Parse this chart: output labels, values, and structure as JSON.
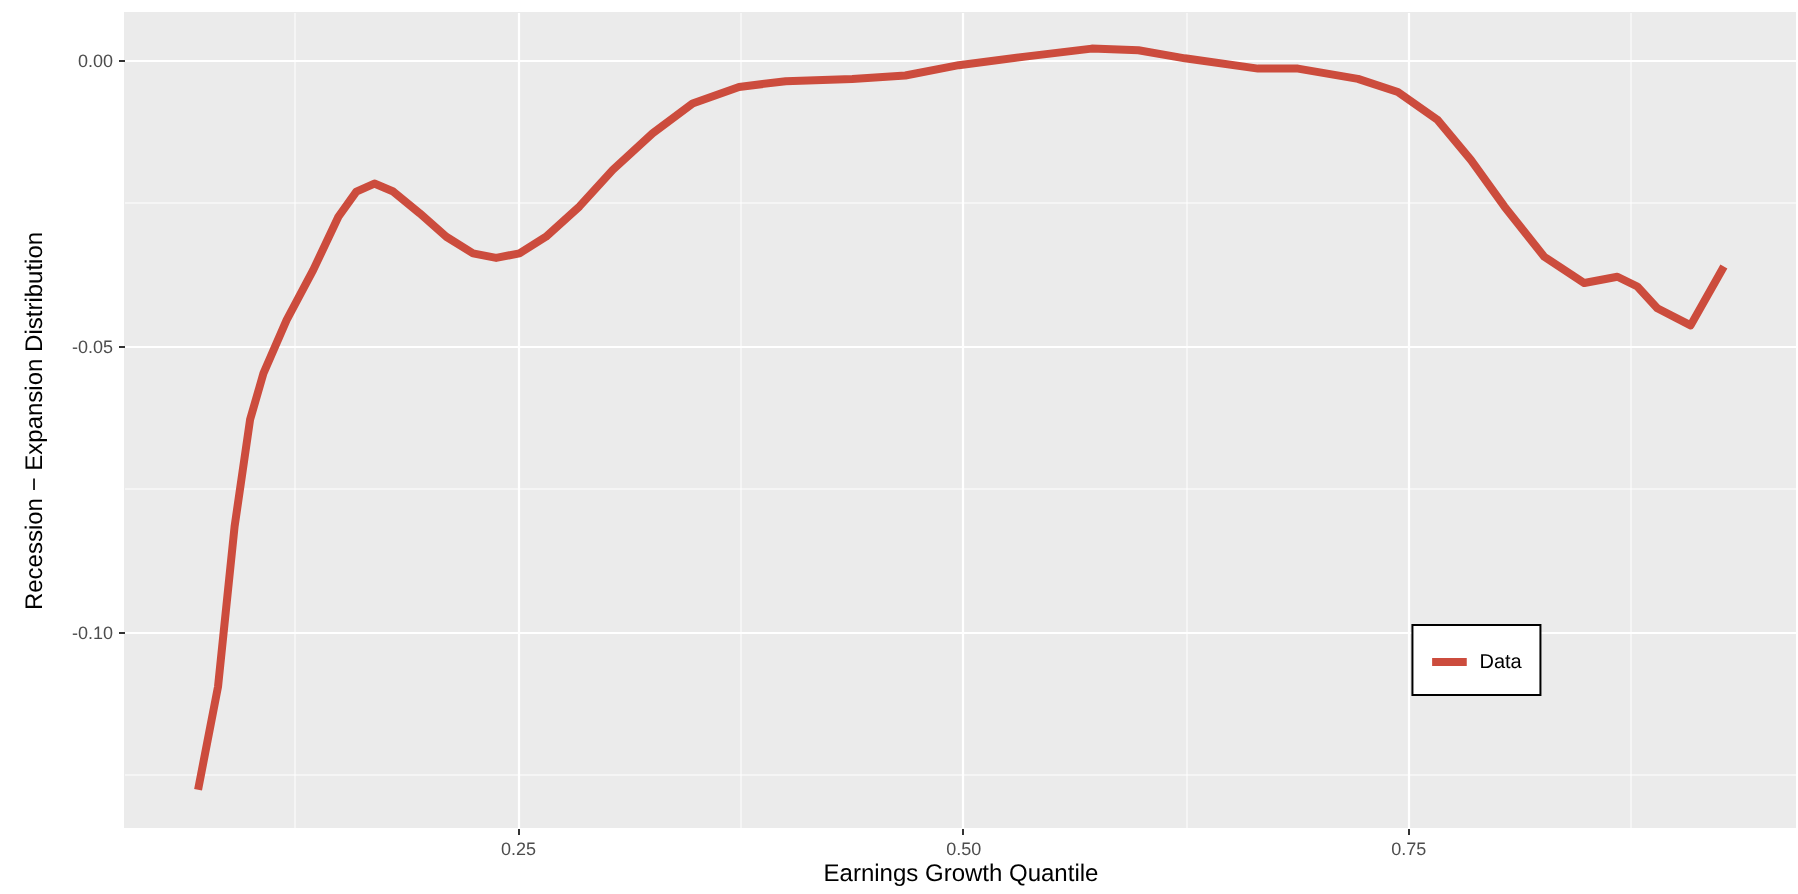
{
  "chart_data": {
    "type": "line",
    "xlabel": "Earnings Growth Quantile",
    "ylabel": "Recession − Expansion Distribution",
    "xlim": [
      0.029,
      0.968
    ],
    "ylim": [
      -0.1343,
      0.0084
    ],
    "xticks": [
      {
        "value": 0.125,
        "label": null
      },
      {
        "value": 0.25,
        "label": "0.25"
      },
      {
        "value": 0.375,
        "label": null
      },
      {
        "value": 0.5,
        "label": "0.50"
      },
      {
        "value": 0.625,
        "label": null
      },
      {
        "value": 0.75,
        "label": "0.75"
      },
      {
        "value": 0.875,
        "label": null
      }
    ],
    "yticks": [
      {
        "value": -0.125,
        "label": null
      },
      {
        "value": -0.1,
        "label": "-0.10"
      },
      {
        "value": -0.075,
        "label": null
      },
      {
        "value": -0.05,
        "label": "-0.05"
      },
      {
        "value": -0.025,
        "label": null
      },
      {
        "value": 0,
        "label": "0.00"
      }
    ],
    "grid": true,
    "legend": "bottom right",
    "line_style": "solid",
    "marker": "none",
    "series": [
      {
        "name": "Data",
        "color": "#cc4c3d",
        "x": [
          0.0706,
          0.0818,
          0.0911,
          0.0998,
          0.1073,
          0.1203,
          0.1353,
          0.1494,
          0.1595,
          0.1696,
          0.1802,
          0.1951,
          0.21,
          0.225,
          0.238,
          0.2511,
          0.266,
          0.2848,
          0.3035,
          0.3259,
          0.3483,
          0.3744,
          0.4006,
          0.438,
          0.4678,
          0.4978,
          0.5351,
          0.5725,
          0.5987,
          0.6248,
          0.6659,
          0.6883,
          0.722,
          0.7444,
          0.7668,
          0.7855,
          0.8042,
          0.8266,
          0.8491,
          0.8677,
          0.8789,
          0.8901,
          0.9088,
          0.9275
        ],
        "values": [
          -0.1276,
          -0.1096,
          -0.0816,
          -0.0629,
          -0.0548,
          -0.0455,
          -0.0367,
          -0.0274,
          -0.023,
          -0.0216,
          -0.023,
          -0.0268,
          -0.0309,
          -0.0338,
          -0.0346,
          -0.0338,
          -0.0309,
          -0.0256,
          -0.0192,
          -0.0128,
          -0.0076,
          -0.0047,
          -0.0037,
          -0.0033,
          -0.0027,
          -0.0009,
          0.0006,
          0.002,
          0.0017,
          0.0003,
          -0.0015,
          -0.0015,
          -0.0033,
          -0.0056,
          -0.0105,
          -0.0175,
          -0.0256,
          -0.0344,
          -0.039,
          -0.0379,
          -0.0396,
          -0.0434,
          -0.0464,
          -0.0361
        ]
      }
    ]
  }
}
